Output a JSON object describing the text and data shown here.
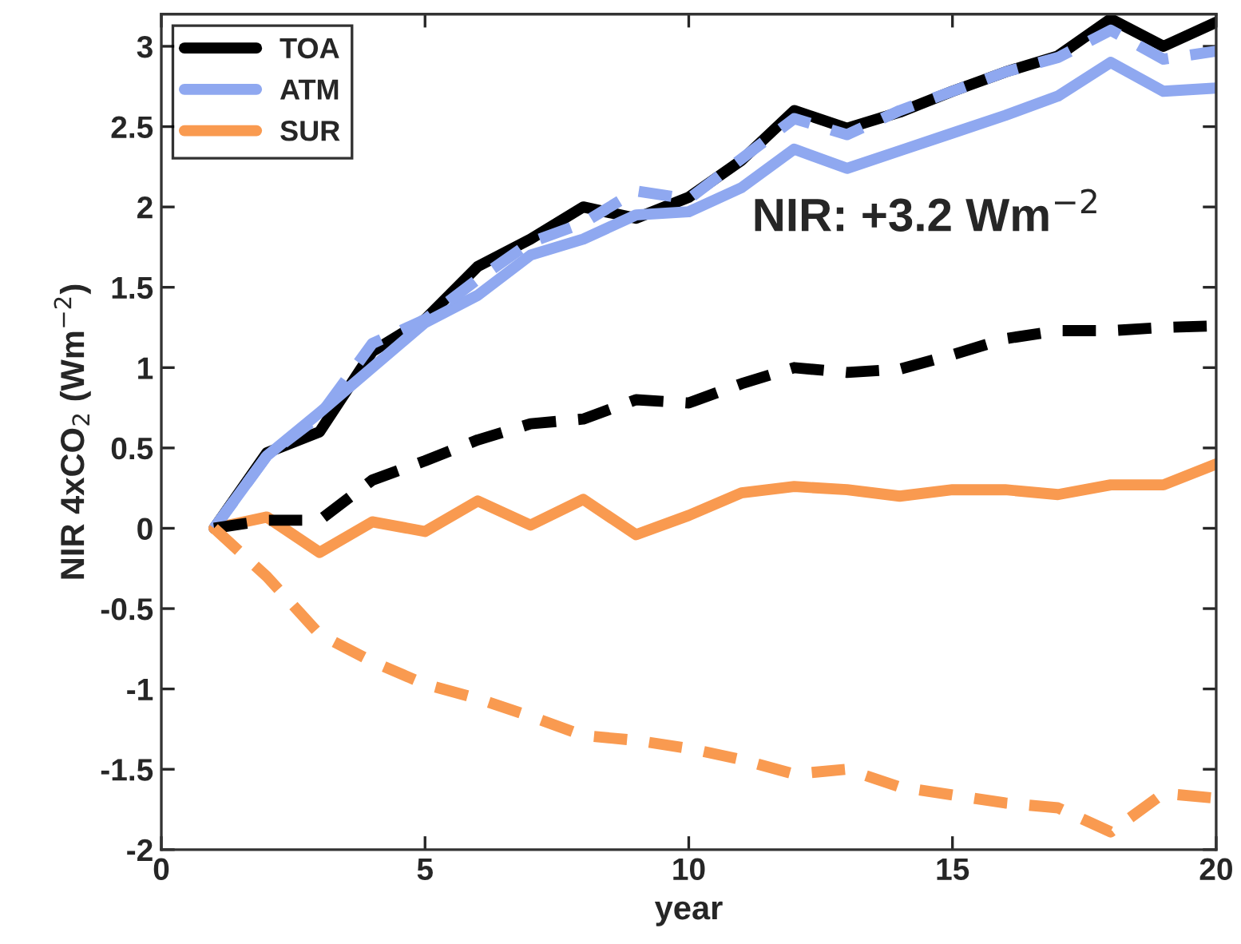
{
  "chart_data": {
    "type": "line",
    "xlabel": "year",
    "ylabel": "NIR 4xCO$_{2}$ (Wm$^{−2}$)",
    "annotations": [
      "NIR: +3.2 Wm$^{−2}$"
    ],
    "x": [
      1,
      2,
      3,
      4,
      5,
      6,
      7,
      8,
      9,
      10,
      11,
      12,
      13,
      14,
      15,
      16,
      17,
      18,
      19,
      20
    ],
    "xlim": [
      0,
      20
    ],
    "xticks": [
      0,
      5,
      10,
      15,
      20
    ],
    "ylim": [
      -2,
      3.2
    ],
    "yticks": [
      -2,
      -1.5,
      -1,
      -0.5,
      0,
      0.5,
      1,
      1.5,
      2,
      2.5,
      3
    ],
    "grid": false,
    "legend": "top left",
    "marker": "none",
    "series": [
      {
        "name": "TOA",
        "color": "#000000",
        "line_style": "solid",
        "values": [
          0,
          0.47,
          0.6,
          1.1,
          1.3,
          1.63,
          1.8,
          2.0,
          1.93,
          2.06,
          2.29,
          2.6,
          2.49,
          2.59,
          2.72,
          2.84,
          2.94,
          3.17,
          3.0,
          3.15
        ]
      },
      {
        "name": "ATM",
        "color": "#8fa8f0",
        "line_style": "solid",
        "values": [
          0,
          0.45,
          0.72,
          1.0,
          1.28,
          1.45,
          1.7,
          1.8,
          1.95,
          1.97,
          2.12,
          2.36,
          2.24,
          2.35,
          2.46,
          2.57,
          2.69,
          2.9,
          2.72,
          2.74
        ]
      },
      {
        "name": "SUR",
        "color": "#f99a50",
        "line_style": "solid",
        "values": [
          0,
          0.07,
          -0.15,
          0.04,
          -0.02,
          0.17,
          0.02,
          0.18,
          -0.04,
          0.08,
          0.22,
          0.26,
          0.24,
          0.2,
          0.24,
          0.24,
          0.21,
          0.27,
          0.27,
          0.4
        ]
      },
      {
        "color": "#8fa8f0",
        "line_style": "dashed",
        "values": [
          0,
          0.45,
          0.7,
          1.15,
          1.3,
          1.55,
          1.78,
          1.9,
          2.1,
          2.05,
          2.3,
          2.55,
          2.45,
          2.6,
          2.72,
          2.84,
          2.93,
          3.1,
          2.92,
          2.97
        ]
      },
      {
        "color": "#000000",
        "line_style": "dashed",
        "values": [
          0,
          0.05,
          0.05,
          0.3,
          0.42,
          0.55,
          0.65,
          0.68,
          0.8,
          0.78,
          0.9,
          1.0,
          0.97,
          0.99,
          1.08,
          1.18,
          1.23,
          1.23,
          1.25,
          1.26
        ]
      },
      {
        "color": "#f99a50",
        "line_style": "dashed",
        "values": [
          0,
          -0.3,
          -0.66,
          -0.83,
          -0.97,
          -1.06,
          -1.17,
          -1.29,
          -1.32,
          -1.37,
          -1.44,
          -1.53,
          -1.5,
          -1.61,
          -1.66,
          -1.71,
          -1.74,
          -1.89,
          -1.65,
          -1.68
        ]
      }
    ]
  }
}
